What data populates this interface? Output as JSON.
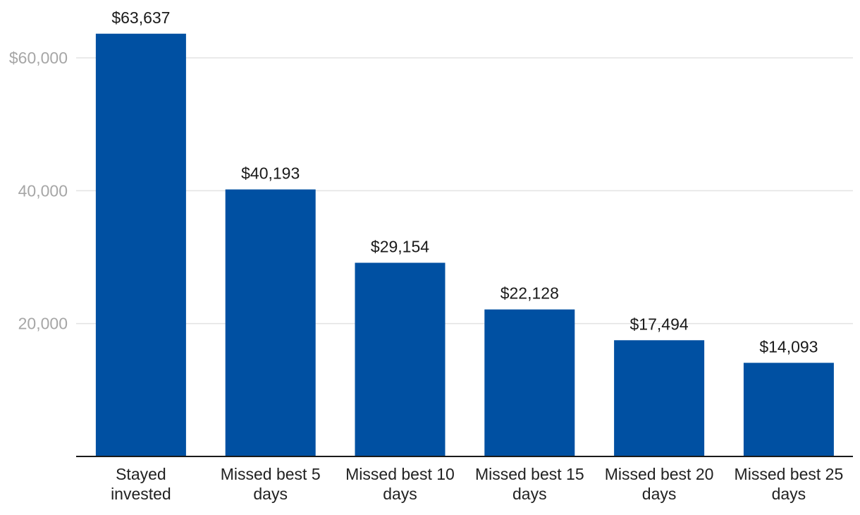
{
  "chart_data": {
    "type": "bar",
    "title": "",
    "xlabel": "",
    "ylabel": "",
    "categories": [
      "Stayed invested",
      "Missed best 5 days",
      "Missed best 10 days",
      "Missed best 15 days",
      "Missed best 20 days",
      "Missed best 25 days"
    ],
    "category_lines": [
      [
        "Stayed",
        "invested"
      ],
      [
        "Missed best 5",
        "days"
      ],
      [
        "Missed best 10",
        "days"
      ],
      [
        "Missed best 15",
        "days"
      ],
      [
        "Missed best 20",
        "days"
      ],
      [
        "Missed best 25",
        "days"
      ]
    ],
    "values": [
      63637,
      40193,
      29154,
      22128,
      17494,
      14093
    ],
    "data_labels": [
      "$63,637",
      "$40,193",
      "$29,154",
      "$22,128",
      "$17,494",
      "$14,093"
    ],
    "ylim": [
      0,
      66000
    ],
    "yticks": [
      20000,
      40000,
      60000
    ],
    "ytick_labels": [
      "20,000",
      "40,000",
      "$60,000"
    ],
    "grid": true,
    "legend": "none",
    "bar_color": "#0050a2"
  }
}
